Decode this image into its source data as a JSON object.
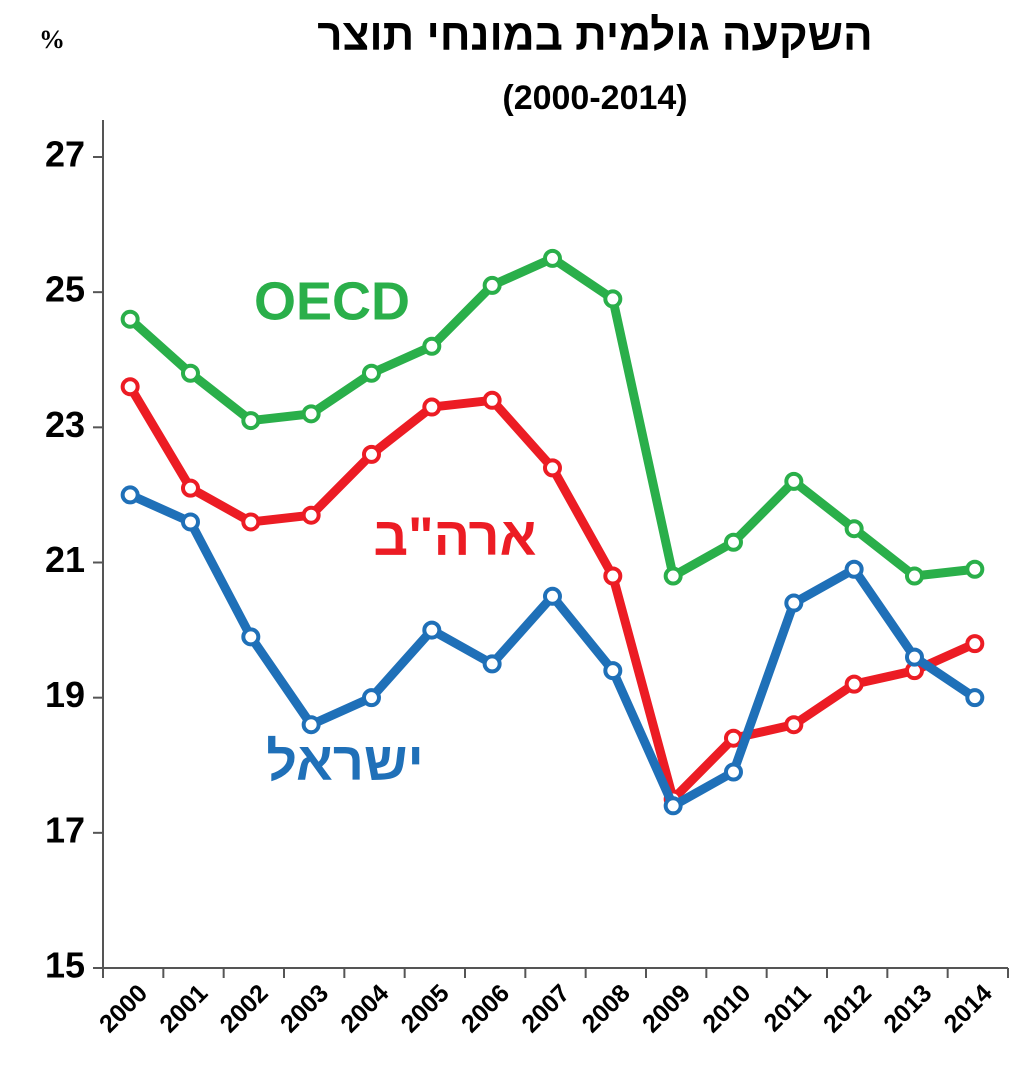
{
  "chart_data": {
    "type": "line",
    "title": "השקעה גולמית במונחי תוצר",
    "subtitle": "(2000-2014)",
    "y_label": "%",
    "categories": [
      "2000",
      "2001",
      "2002",
      "2003",
      "2004",
      "2005",
      "2006",
      "2007",
      "2008",
      "2009",
      "2010",
      "2011",
      "2012",
      "2013",
      "2014"
    ],
    "series": [
      {
        "name": "OECD",
        "color": "#2aaf4a",
        "values": [
          24.6,
          23.8,
          23.1,
          23.2,
          23.8,
          24.2,
          25.1,
          25.5,
          24.9,
          20.8,
          21.3,
          22.2,
          21.5,
          20.8,
          20.9
        ]
      },
      {
        "name": "ארה\"ב",
        "color": "#ec1c24",
        "values": [
          23.6,
          22.1,
          21.6,
          21.7,
          22.6,
          23.3,
          23.4,
          22.4,
          20.8,
          17.5,
          18.4,
          18.6,
          19.2,
          19.4,
          19.8
        ]
      },
      {
        "name": "ישראל",
        "color": "#1f70b8",
        "values": [
          22.0,
          21.6,
          19.9,
          18.6,
          19.0,
          20.0,
          19.5,
          20.5,
          19.4,
          17.4,
          17.9,
          20.4,
          20.9,
          19.6,
          19.0
        ]
      }
    ],
    "ylim": [
      15,
      27
    ],
    "yticks": [
      15,
      17,
      19,
      21,
      23,
      25,
      27
    ]
  }
}
